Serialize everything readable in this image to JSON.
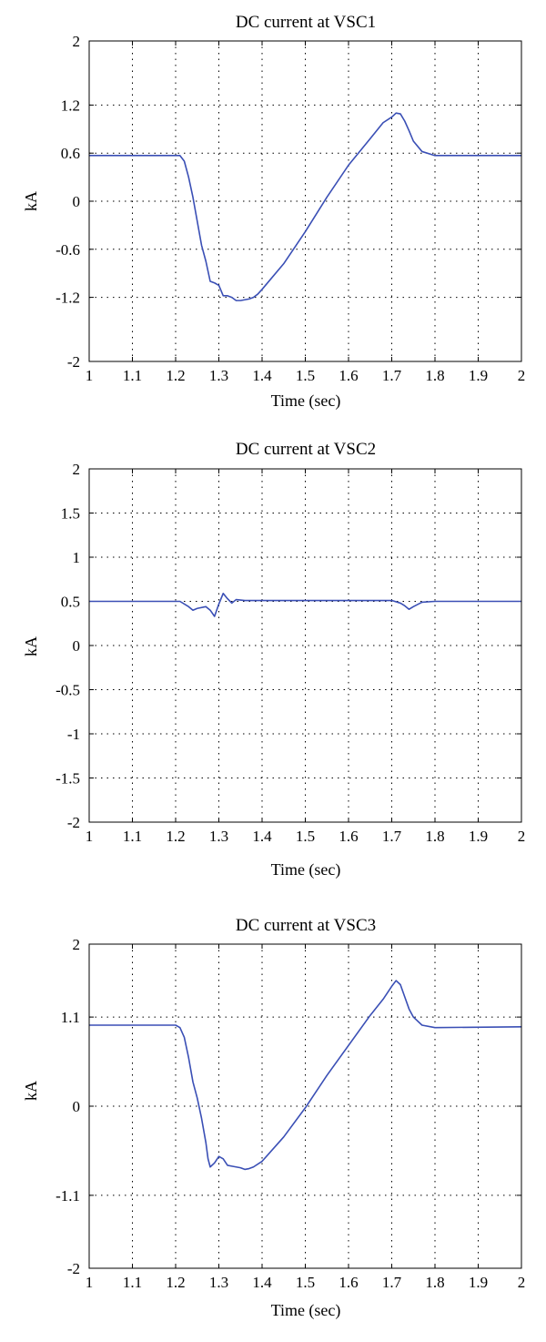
{
  "chart_data": [
    {
      "type": "line",
      "title": "DC current at VSC1",
      "xlabel": "Time (sec)",
      "ylabel": "kA",
      "xlim": [
        1,
        2
      ],
      "ylim": [
        -2,
        2
      ],
      "xticks": [
        1,
        1.1,
        1.2,
        1.3,
        1.4,
        1.5,
        1.6,
        1.7,
        1.8,
        1.9,
        2
      ],
      "xtick_labels": [
        "1",
        "1.1",
        "1.2",
        "1.3",
        "1.4",
        "1.5",
        "1.6",
        "1.7",
        "1.8",
        "1.9",
        "2"
      ],
      "yticks": [
        -2,
        -1.2,
        -0.6,
        0,
        0.6,
        1.2,
        2
      ],
      "ytick_labels": [
        "-2",
        "-1.2",
        "-0.6",
        "0",
        "0.6",
        "1.2",
        "2"
      ],
      "grid": true,
      "line_color": "#3a4fb5",
      "series": [
        {
          "x": [
            1.0,
            1.21,
            1.22,
            1.23,
            1.24,
            1.25,
            1.26,
            1.27,
            1.28,
            1.29,
            1.3,
            1.31,
            1.32,
            1.33,
            1.34,
            1.35,
            1.36,
            1.37,
            1.38,
            1.39,
            1.4,
            1.45,
            1.5,
            1.55,
            1.6,
            1.65,
            1.68,
            1.7,
            1.71,
            1.72,
            1.73,
            1.74,
            1.75,
            1.77,
            1.8,
            2.0
          ],
          "y": [
            0.57,
            0.57,
            0.5,
            0.3,
            0.05,
            -0.25,
            -0.55,
            -0.75,
            -1.0,
            -1.02,
            -1.05,
            -1.18,
            -1.18,
            -1.2,
            -1.24,
            -1.24,
            -1.23,
            -1.22,
            -1.2,
            -1.16,
            -1.1,
            -0.78,
            -0.38,
            0.05,
            0.45,
            0.78,
            0.98,
            1.05,
            1.1,
            1.09,
            1.0,
            0.88,
            0.75,
            0.62,
            0.57,
            0.57
          ]
        }
      ]
    },
    {
      "type": "line",
      "title": "DC current at VSC2",
      "xlabel": "Time (sec)",
      "ylabel": "kA",
      "xlim": [
        1,
        2
      ],
      "ylim": [
        -2,
        2
      ],
      "xticks": [
        1,
        1.1,
        1.2,
        1.3,
        1.4,
        1.5,
        1.6,
        1.7,
        1.8,
        1.9,
        2
      ],
      "xtick_labels": [
        "1",
        "1.1",
        "1.2",
        "1.3",
        "1.4",
        "1.5",
        "1.6",
        "1.7",
        "1.8",
        "1.9",
        "2"
      ],
      "yticks": [
        -2,
        -1.5,
        -1,
        -0.5,
        0,
        0.5,
        1,
        1.5,
        2
      ],
      "ytick_labels": [
        "-2",
        "-1.5",
        "-1",
        "-0.5",
        "0",
        "0.5",
        "1",
        "1.5",
        "2"
      ],
      "grid": true,
      "line_color": "#3a4fb5",
      "series": [
        {
          "x": [
            1.0,
            1.21,
            1.23,
            1.24,
            1.25,
            1.27,
            1.28,
            1.29,
            1.3,
            1.31,
            1.32,
            1.33,
            1.34,
            1.36,
            1.4,
            1.7,
            1.72,
            1.73,
            1.74,
            1.75,
            1.77,
            1.8,
            2.0
          ],
          "y": [
            0.5,
            0.5,
            0.44,
            0.4,
            0.42,
            0.44,
            0.4,
            0.33,
            0.47,
            0.59,
            0.53,
            0.48,
            0.52,
            0.51,
            0.51,
            0.51,
            0.48,
            0.45,
            0.41,
            0.44,
            0.49,
            0.5,
            0.5
          ]
        }
      ]
    },
    {
      "type": "line",
      "title": "DC current at VSC3",
      "xlabel": "Time (sec)",
      "ylabel": "kA",
      "xlim": [
        1,
        2
      ],
      "ylim": [
        -2,
        2
      ],
      "xticks": [
        1,
        1.1,
        1.2,
        1.3,
        1.4,
        1.5,
        1.6,
        1.7,
        1.8,
        1.9,
        2
      ],
      "xtick_labels": [
        "1",
        "1.1",
        "1.2",
        "1.3",
        "1.4",
        "1.5",
        "1.6",
        "1.7",
        "1.8",
        "1.9",
        "2"
      ],
      "yticks": [
        -2,
        -1.1,
        0,
        1.1,
        2
      ],
      "ytick_labels": [
        "-2",
        "-1.1",
        "0",
        "1.1",
        "2"
      ],
      "grid": true,
      "line_color": "#3a4fb5",
      "series": [
        {
          "x": [
            1.0,
            1.2,
            1.21,
            1.22,
            1.23,
            1.24,
            1.25,
            1.26,
            1.27,
            1.275,
            1.28,
            1.29,
            1.3,
            1.31,
            1.32,
            1.33,
            1.34,
            1.35,
            1.36,
            1.37,
            1.38,
            1.4,
            1.45,
            1.5,
            1.55,
            1.6,
            1.65,
            1.68,
            1.7,
            1.71,
            1.72,
            1.73,
            1.74,
            1.75,
            1.77,
            1.8,
            2.0
          ],
          "y": [
            1.0,
            1.0,
            0.97,
            0.85,
            0.6,
            0.3,
            0.1,
            -0.15,
            -0.45,
            -0.65,
            -0.75,
            -0.7,
            -0.62,
            -0.65,
            -0.73,
            -0.74,
            -0.75,
            -0.76,
            -0.78,
            -0.77,
            -0.75,
            -0.68,
            -0.38,
            -0.02,
            0.38,
            0.75,
            1.12,
            1.32,
            1.48,
            1.55,
            1.5,
            1.35,
            1.2,
            1.1,
            1.0,
            0.97,
            0.98
          ]
        }
      ]
    }
  ]
}
